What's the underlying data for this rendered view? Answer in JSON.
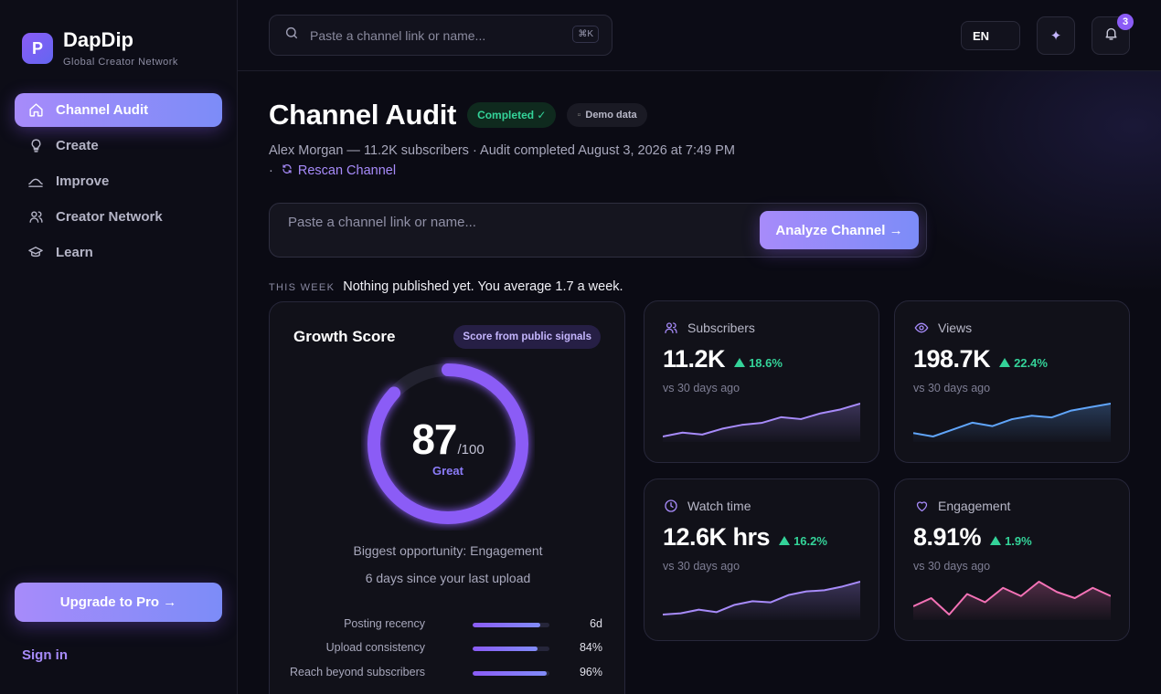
{
  "brand": {
    "name": "DapDip",
    "tagline": "Global Creator Network",
    "logo_glyph": "P"
  },
  "sidebar": {
    "items": [
      {
        "label": "Channel Audit",
        "icon": "home-icon",
        "active": true
      },
      {
        "label": "Create",
        "icon": "lightbulb-icon",
        "active": false
      },
      {
        "label": "Improve",
        "icon": "wave-icon",
        "active": false
      },
      {
        "label": "Creator Network",
        "icon": "users-icon",
        "active": false
      },
      {
        "label": "Learn",
        "icon": "graduation-cap-icon",
        "active": false
      }
    ],
    "upgrade_label": "Upgrade to Pro →",
    "signin_label": "Sign in"
  },
  "topbar": {
    "search_placeholder": "Paste a channel link or name...",
    "shortcut": "⌘K",
    "language": "EN",
    "notification_count": "3"
  },
  "page": {
    "title": "Channel Audit",
    "status_badge": "Completed ✓",
    "demo_badge": "Demo data",
    "subtitle": "Alex Morgan — 11.2K subscribers · Audit completed August 3, 2026 at 7:49 PM",
    "subtitle_sep": "·",
    "rescan_label": "Rescan Channel",
    "analyze_placeholder": "Paste a channel link or name...",
    "analyze_label": "Analyze Channel →",
    "this_week_label": "THIS WEEK",
    "this_week_text": "Nothing published yet. You average 1.7 a week."
  },
  "growth": {
    "title": "Growth Score",
    "chip": "Score from public signals",
    "score": "87",
    "score_max": "/100",
    "score_value": 0.87,
    "rating": "Great",
    "opportunity": "Biggest opportunity: Engagement",
    "since_upload": "6 days since your last upload",
    "metrics": [
      {
        "label": "Posting recency",
        "value": "6d",
        "fill": 0.88
      },
      {
        "label": "Upload consistency",
        "value": "84%",
        "fill": 0.84
      },
      {
        "label": "Reach beyond subscribers",
        "value": "96%",
        "fill": 0.96
      }
    ]
  },
  "stats": [
    {
      "label": "Subscribers",
      "icon": "users-icon",
      "value": "11.2K",
      "delta": "18.6%",
      "compare": "vs 30 days ago",
      "color": "#a78bfa",
      "spark": [
        3,
        4,
        3.5,
        5,
        6,
        6.5,
        8,
        7.5,
        9,
        10,
        11.5
      ]
    },
    {
      "label": "Views",
      "icon": "eye-icon",
      "value": "198.7K",
      "delta": "22.4%",
      "compare": "vs 30 days ago",
      "color": "#60a5fa",
      "spark": [
        4,
        3,
        5,
        7,
        6,
        8,
        9,
        8.5,
        10.5,
        11.5,
        12.5
      ]
    },
    {
      "label": "Watch time",
      "icon": "clock-icon",
      "value": "12.6K hrs",
      "delta": "16.2%",
      "compare": "vs 30 days ago",
      "color": "#a78bfa",
      "spark": [
        3,
        3.5,
        5,
        4,
        7,
        8.5,
        8,
        11,
        12.5,
        13,
        14.5,
        16.5
      ]
    },
    {
      "label": "Engagement",
      "icon": "heart-icon",
      "value": "8.91%",
      "delta": "1.9%",
      "compare": "vs 30 days ago",
      "color": "#f472b6",
      "spark": [
        5,
        7,
        3,
        8,
        6,
        9.5,
        7.5,
        11,
        8.5,
        7,
        9.5,
        7.5
      ]
    }
  ]
}
